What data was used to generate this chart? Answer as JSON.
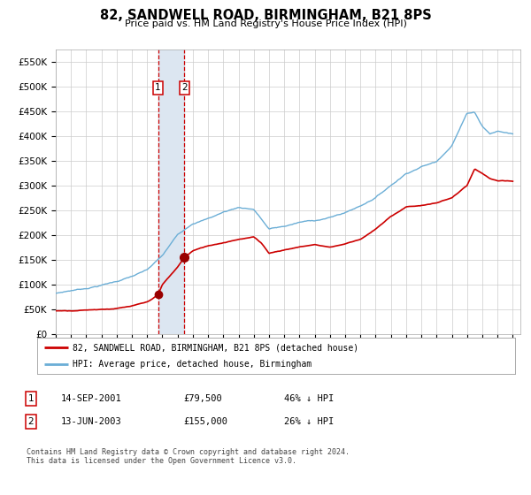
{
  "title": "82, SANDWELL ROAD, BIRMINGHAM, B21 8PS",
  "subtitle": "Price paid vs. HM Land Registry's House Price Index (HPI)",
  "ylim": [
    0,
    575000
  ],
  "yticks": [
    0,
    50000,
    100000,
    150000,
    200000,
    250000,
    300000,
    350000,
    400000,
    450000,
    500000,
    550000
  ],
  "ytick_labels": [
    "£0",
    "£50K",
    "£100K",
    "£150K",
    "£200K",
    "£250K",
    "£300K",
    "£350K",
    "£400K",
    "£450K",
    "£500K",
    "£550K"
  ],
  "xlim_min": 1995,
  "xlim_max": 2025.5,
  "transaction1": {
    "date_str": "14-SEP-2001",
    "date_num": 2001.71,
    "price": 79500,
    "label": "1"
  },
  "transaction2": {
    "date_str": "13-JUN-2003",
    "date_num": 2003.45,
    "price": 155000,
    "label": "2"
  },
  "hpi_color": "#6baed6",
  "price_color": "#cc0000",
  "marker_color": "#990000",
  "shade_color": "#dce6f1",
  "vline_color": "#cc0000",
  "legend_label_red": "82, SANDWELL ROAD, BIRMINGHAM, B21 8PS (detached house)",
  "legend_label_blue": "HPI: Average price, detached house, Birmingham",
  "table_entries": [
    {
      "num": "1",
      "date": "14-SEP-2001",
      "price": "£79,500",
      "hpi": "46% ↓ HPI"
    },
    {
      "num": "2",
      "date": "13-JUN-2003",
      "price": "£155,000",
      "hpi": "26% ↓ HPI"
    }
  ],
  "footnote": "Contains HM Land Registry data © Crown copyright and database right 2024.\nThis data is licensed under the Open Government Licence v3.0.",
  "background_color": "#ffffff",
  "grid_color": "#cccccc",
  "hpi_knots": [
    1995,
    1996,
    1997,
    1998,
    1999,
    2000,
    2001,
    2002,
    2003,
    2004,
    2005,
    2006,
    2007,
    2008,
    2009,
    2010,
    2011,
    2012,
    2013,
    2014,
    2015,
    2016,
    2017,
    2018,
    2019,
    2020,
    2021,
    2022,
    2022.5,
    2023,
    2023.5,
    2024,
    2025
  ],
  "hpi_vals": [
    82000,
    88000,
    93000,
    100000,
    108000,
    118000,
    130000,
    158000,
    200000,
    225000,
    235000,
    248000,
    258000,
    255000,
    215000,
    220000,
    228000,
    232000,
    238000,
    248000,
    262000,
    280000,
    305000,
    330000,
    345000,
    355000,
    390000,
    455000,
    458000,
    430000,
    415000,
    420000,
    415000
  ],
  "price_knots": [
    1995,
    1996,
    1997,
    1998,
    1999,
    2000,
    2001,
    2001.71,
    2001.72,
    2002,
    2003,
    2003.45,
    2003.46,
    2004,
    2005,
    2006,
    2007,
    2008,
    2008.5,
    2009,
    2010,
    2011,
    2012,
    2013,
    2014,
    2015,
    2016,
    2017,
    2018,
    2019,
    2020,
    2021,
    2022,
    2022.5,
    2023,
    2023.5,
    2024,
    2025
  ],
  "price_vals": [
    47000,
    48000,
    50000,
    52000,
    54000,
    58000,
    65000,
    79500,
    79500,
    100000,
    135000,
    155000,
    155000,
    168000,
    178000,
    185000,
    193000,
    197000,
    185000,
    165000,
    172000,
    178000,
    183000,
    178000,
    185000,
    195000,
    215000,
    240000,
    260000,
    263000,
    268000,
    278000,
    302000,
    335000,
    325000,
    315000,
    310000,
    308000
  ]
}
